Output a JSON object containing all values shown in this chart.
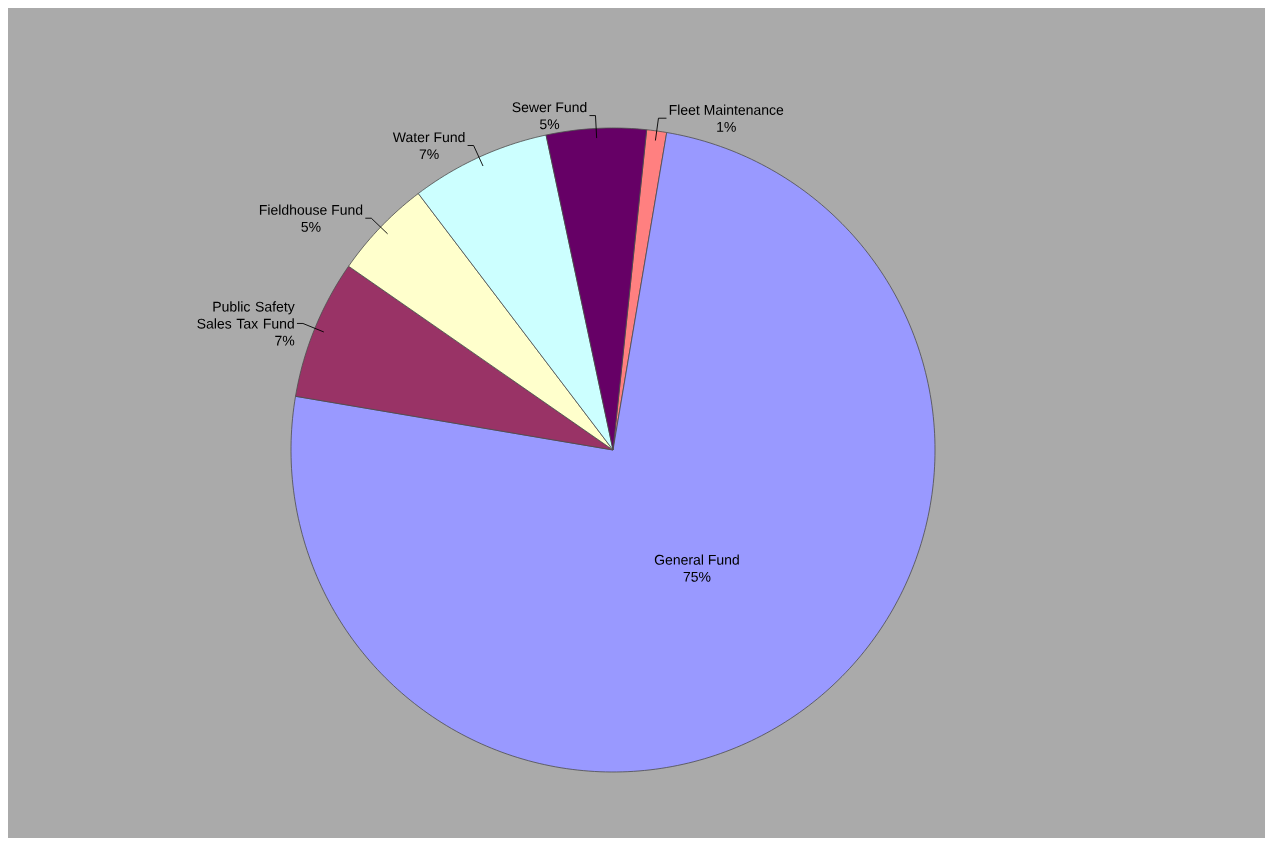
{
  "chart_data": {
    "type": "pie",
    "categories": [
      "Fleet Maintenance",
      "General Fund",
      "Public Safety Sales Tax Fund",
      "Fieldhouse Fund",
      "Water Fund",
      "Sewer Fund"
    ],
    "values": [
      1,
      75,
      7,
      5,
      7,
      5
    ],
    "colors": [
      "#ff8080",
      "#9999ff",
      "#993366",
      "#ffffcc",
      "#ccffff",
      "#660066"
    ],
    "value_labels": [
      "1%",
      "75%",
      "7%",
      "5%",
      "7%",
      "5%"
    ]
  }
}
